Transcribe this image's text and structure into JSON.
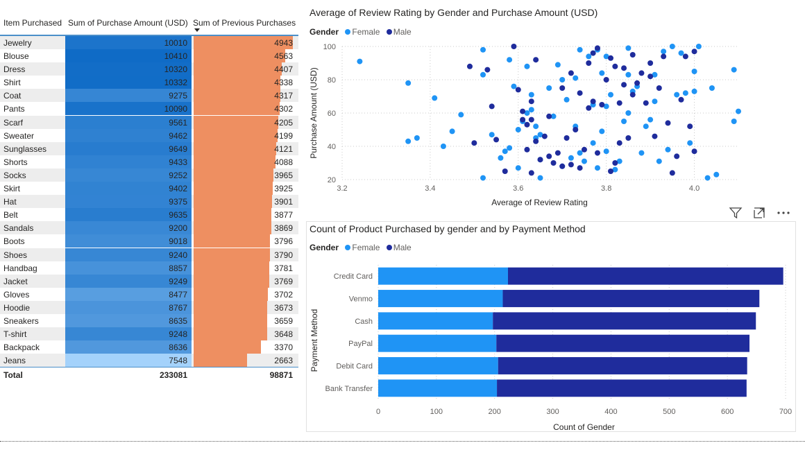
{
  "table": {
    "headers": [
      "Item Purchased",
      "Sum of Purchase Amount (USD)",
      "Sum of Previous Purchases"
    ],
    "rows": [
      {
        "item": "Jewelry",
        "amount": "10010",
        "prev": "4943",
        "amount_value": 10010,
        "prev_value": 4943
      },
      {
        "item": "Blouse",
        "amount": "10410",
        "prev": "4563",
        "amount_value": 10410,
        "prev_value": 4563
      },
      {
        "item": "Dress",
        "amount": "10320",
        "prev": "4407",
        "amount_value": 10320,
        "prev_value": 4407
      },
      {
        "item": "Shirt",
        "amount": "10332",
        "prev": "4338",
        "amount_value": 10332,
        "prev_value": 4338
      },
      {
        "item": "Coat",
        "amount": "9275",
        "prev": "4317",
        "amount_value": 9275,
        "prev_value": 4317
      },
      {
        "item": "Pants",
        "amount": "10090",
        "prev": "4302",
        "amount_value": 10090,
        "prev_value": 4302
      },
      {
        "item": "Scarf",
        "amount": "9561",
        "prev": "4205",
        "amount_value": 9561,
        "prev_value": 4205
      },
      {
        "item": "Sweater",
        "amount": "9462",
        "prev": "4199",
        "amount_value": 9462,
        "prev_value": 4199
      },
      {
        "item": "Sunglasses",
        "amount": "9649",
        "prev": "4121",
        "amount_value": 9649,
        "prev_value": 4121
      },
      {
        "item": "Shorts",
        "amount": "9433",
        "prev": "4088",
        "amount_value": 9433,
        "prev_value": 4088
      },
      {
        "item": "Socks",
        "amount": "9252",
        "prev": "3965",
        "amount_value": 9252,
        "prev_value": 3965
      },
      {
        "item": "Skirt",
        "amount": "9402",
        "prev": "3925",
        "amount_value": 9402,
        "prev_value": 3925
      },
      {
        "item": "Hat",
        "amount": "9375",
        "prev": "3901",
        "amount_value": 9375,
        "prev_value": 3901
      },
      {
        "item": "Belt",
        "amount": "9635",
        "prev": "3877",
        "amount_value": 9635,
        "prev_value": 3877
      },
      {
        "item": "Sandals",
        "amount": "9200",
        "prev": "3869",
        "amount_value": 9200,
        "prev_value": 3869
      },
      {
        "item": "Boots",
        "amount": "9018",
        "prev": "3796",
        "amount_value": 9018,
        "prev_value": 3796
      },
      {
        "item": "Shoes",
        "amount": "9240",
        "prev": "3790",
        "amount_value": 9240,
        "prev_value": 3790
      },
      {
        "item": "Handbag",
        "amount": "8857",
        "prev": "3781",
        "amount_value": 8857,
        "prev_value": 3781
      },
      {
        "item": "Jacket",
        "amount": "9249",
        "prev": "3769",
        "amount_value": 9249,
        "prev_value": 3769
      },
      {
        "item": "Gloves",
        "amount": "8477",
        "prev": "3702",
        "amount_value": 8477,
        "prev_value": 3702
      },
      {
        "item": "Hoodie",
        "amount": "8767",
        "prev": "3673",
        "amount_value": 8767,
        "prev_value": 3673
      },
      {
        "item": "Sneakers",
        "amount": "8635",
        "prev": "3659",
        "amount_value": 8635,
        "prev_value": 3659
      },
      {
        "item": "T-shirt",
        "amount": "9248",
        "prev": "3648",
        "amount_value": 9248,
        "prev_value": 3648
      },
      {
        "item": "Backpack",
        "amount": "8636",
        "prev": "3370",
        "amount_value": 8636,
        "prev_value": 3370
      },
      {
        "item": "Jeans",
        "amount": "7548",
        "prev": "2663",
        "amount_value": 7548,
        "prev_value": 2663
      }
    ],
    "total_label": "Total",
    "total_amount": "233081",
    "total_prev": "98871"
  },
  "colors": {
    "female": "#1f94f5",
    "male": "#1f2c9c",
    "prev_bar": "#ee8f61",
    "amount_high": "#0f6bc6",
    "amount_low": "#a4d2fb"
  },
  "chart_data": [
    {
      "type": "scatter",
      "title": "Average of Review Rating by Gender and Purchase Amount (USD)",
      "xlabel": "Average of Review Rating",
      "ylabel": "Purchase Amount (USD)",
      "xlim": [
        3.2,
        4.1
      ],
      "ylim": [
        20,
        100
      ],
      "xticks": [
        "3.2",
        "3.4",
        "3.6",
        "3.8",
        "4.0"
      ],
      "yticks": [
        "20",
        "40",
        "60",
        "80",
        "100"
      ],
      "grid": true,
      "legend_title": "Gender",
      "legend_position": "top-left",
      "series": [
        {
          "name": "Female",
          "points": [
            [
              3.24,
              91
            ],
            [
              3.35,
              78
            ],
            [
              3.37,
              45
            ],
            [
              3.35,
              43
            ],
            [
              3.41,
              69
            ],
            [
              3.43,
              40
            ],
            [
              3.45,
              49
            ],
            [
              3.47,
              59
            ],
            [
              3.52,
              21
            ],
            [
              3.52,
              83
            ],
            [
              3.52,
              98
            ],
            [
              3.54,
              47
            ],
            [
              3.56,
              33
            ],
            [
              3.57,
              37
            ],
            [
              3.58,
              39
            ],
            [
              3.58,
              92
            ],
            [
              3.59,
              76
            ],
            [
              3.6,
              27
            ],
            [
              3.6,
              50
            ],
            [
              3.61,
              55
            ],
            [
              3.62,
              60
            ],
            [
              3.62,
              88
            ],
            [
              3.63,
              62
            ],
            [
              3.63,
              71
            ],
            [
              3.64,
              52
            ],
            [
              3.64,
              45
            ],
            [
              3.65,
              47
            ],
            [
              3.65,
              32
            ],
            [
              3.65,
              21
            ],
            [
              3.67,
              75
            ],
            [
              3.68,
              58
            ],
            [
              3.69,
              89
            ],
            [
              3.7,
              80
            ],
            [
              3.7,
              28
            ],
            [
              3.71,
              68
            ],
            [
              3.72,
              33
            ],
            [
              3.73,
              81
            ],
            [
              3.73,
              52
            ],
            [
              3.74,
              98
            ],
            [
              3.74,
              36
            ],
            [
              3.75,
              31
            ],
            [
              3.76,
              94
            ],
            [
              3.77,
              65
            ],
            [
              3.77,
              42
            ],
            [
              3.78,
              27
            ],
            [
              3.78,
              98
            ],
            [
              3.79,
              84
            ],
            [
              3.79,
              49
            ],
            [
              3.8,
              64
            ],
            [
              3.8,
              37
            ],
            [
              3.8,
              94
            ],
            [
              3.81,
              71
            ],
            [
              3.82,
              26
            ],
            [
              3.83,
              31
            ],
            [
              3.84,
              55
            ],
            [
              3.85,
              60
            ],
            [
              3.85,
              83
            ],
            [
              3.85,
              99
            ],
            [
              3.86,
              73
            ],
            [
              3.87,
              76
            ],
            [
              3.88,
              36
            ],
            [
              3.89,
              52
            ],
            [
              3.9,
              56
            ],
            [
              3.91,
              67
            ],
            [
              3.91,
              83
            ],
            [
              3.92,
              31
            ],
            [
              3.93,
              97
            ],
            [
              3.94,
              38
            ],
            [
              3.95,
              100
            ],
            [
              3.96,
              71
            ],
            [
              3.97,
              96
            ],
            [
              3.98,
              72
            ],
            [
              3.99,
              42
            ],
            [
              4.0,
              73
            ],
            [
              4.0,
              85
            ],
            [
              4.01,
              100
            ],
            [
              4.03,
              21
            ],
            [
              4.04,
              75
            ],
            [
              4.05,
              23
            ],
            [
              4.09,
              86
            ],
            [
              4.09,
              55
            ],
            [
              4.1,
              61
            ]
          ]
        },
        {
          "name": "Male",
          "points": [
            [
              3.49,
              88
            ],
            [
              3.5,
              42
            ],
            [
              3.53,
              86
            ],
            [
              3.54,
              64
            ],
            [
              3.55,
              44
            ],
            [
              3.57,
              25
            ],
            [
              3.59,
              100
            ],
            [
              3.6,
              74
            ],
            [
              3.61,
              56
            ],
            [
              3.61,
              61
            ],
            [
              3.62,
              38
            ],
            [
              3.62,
              53
            ],
            [
              3.63,
              56
            ],
            [
              3.63,
              67
            ],
            [
              3.63,
              24
            ],
            [
              3.64,
              43
            ],
            [
              3.64,
              92
            ],
            [
              3.65,
              32
            ],
            [
              3.66,
              46
            ],
            [
              3.67,
              58
            ],
            [
              3.67,
              34
            ],
            [
              3.68,
              30
            ],
            [
              3.69,
              36
            ],
            [
              3.7,
              28
            ],
            [
              3.7,
              75
            ],
            [
              3.71,
              45
            ],
            [
              3.72,
              84
            ],
            [
              3.72,
              29
            ],
            [
              3.73,
              50
            ],
            [
              3.74,
              27
            ],
            [
              3.74,
              72
            ],
            [
              3.75,
              38
            ],
            [
              3.76,
              90
            ],
            [
              3.76,
              63
            ],
            [
              3.77,
              96
            ],
            [
              3.77,
              67
            ],
            [
              3.78,
              99
            ],
            [
              3.78,
              36
            ],
            [
              3.79,
              65
            ],
            [
              3.8,
              80
            ],
            [
              3.81,
              93
            ],
            [
              3.81,
              25
            ],
            [
              3.82,
              88
            ],
            [
              3.82,
              30
            ],
            [
              3.83,
              42
            ],
            [
              3.83,
              66
            ],
            [
              3.84,
              87
            ],
            [
              3.84,
              77
            ],
            [
              3.85,
              45
            ],
            [
              3.86,
              71
            ],
            [
              3.86,
              95
            ],
            [
              3.87,
              78
            ],
            [
              3.88,
              84
            ],
            [
              3.89,
              66
            ],
            [
              3.9,
              90
            ],
            [
              3.9,
              82
            ],
            [
              3.91,
              46
            ],
            [
              3.92,
              75
            ],
            [
              3.93,
              94
            ],
            [
              3.94,
              54
            ],
            [
              3.95,
              24
            ],
            [
              3.96,
              34
            ],
            [
              3.97,
              68
            ],
            [
              3.98,
              94
            ],
            [
              3.99,
              52
            ],
            [
              4.0,
              37
            ],
            [
              4.0,
              97
            ]
          ]
        }
      ]
    },
    {
      "type": "bar",
      "orientation": "horizontal",
      "stacked": true,
      "title": "Count of Product Purchased by gender and by Payment Method",
      "xlabel": "Count of Gender",
      "ylabel": "Payment Method",
      "xlim": [
        0,
        700
      ],
      "xticks": [
        "0",
        "100",
        "200",
        "300",
        "400",
        "500",
        "600",
        "700"
      ],
      "legend_title": "Gender",
      "legend_position": "top-left",
      "categories": [
        "Credit Card",
        "Venmo",
        "Cash",
        "PayPal",
        "Debit Card",
        "Bank Transfer"
      ],
      "series": [
        {
          "name": "Female",
          "values": [
            223,
            214,
            197,
            203,
            206,
            204
          ]
        },
        {
          "name": "Male",
          "values": [
            473,
            441,
            452,
            435,
            428,
            429
          ]
        }
      ]
    }
  ]
}
